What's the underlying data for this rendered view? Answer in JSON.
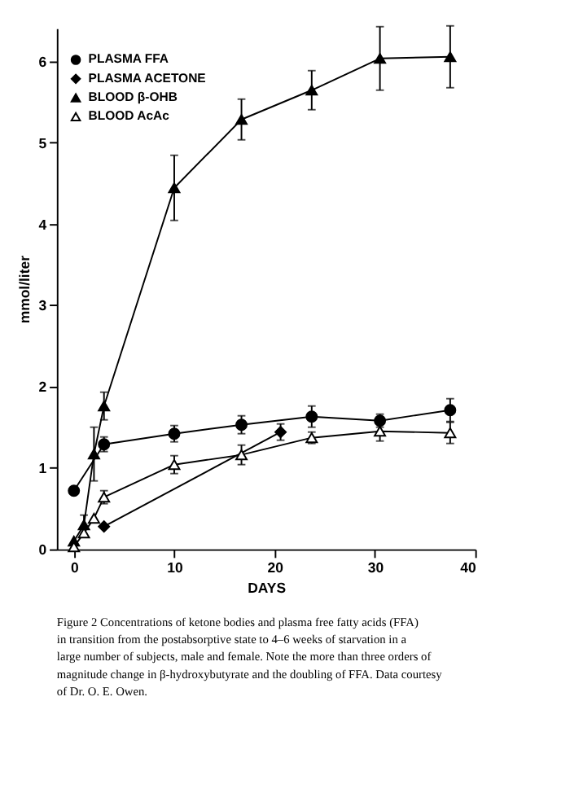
{
  "chart_data": {
    "type": "line",
    "xlabel": "DAYS",
    "ylabel": "mmol/liter",
    "xlim": [
      -1.7,
      40
    ],
    "xticks": [
      0,
      10,
      20,
      30,
      40
    ],
    "ylim": [
      0,
      6.4
    ],
    "yticks": [
      0,
      1,
      2,
      3,
      4,
      5,
      6
    ],
    "grid": false,
    "legend": "top left",
    "line_style": "solid",
    "series": [
      {
        "name": "PLASMA FFA",
        "color": "#000000",
        "marker": "circle",
        "x": [
          0,
          3,
          10,
          16.7,
          23.7,
          30.5,
          37.5
        ],
        "values": [
          0.72,
          1.29,
          1.42,
          1.53,
          1.63,
          1.58,
          1.71
        ],
        "errors": [
          null,
          0.09,
          0.1,
          0.11,
          0.13,
          0.08,
          0.14
        ]
      },
      {
        "name": "PLASMA ACETONE",
        "color": "#000000",
        "marker": "diamond",
        "x": [
          3,
          20.6
        ],
        "values": [
          0.28,
          1.44
        ],
        "errors": [
          null,
          0.1
        ]
      },
      {
        "name": "BLOOD β-OHB",
        "color": "#000000",
        "marker": "triangle",
        "x": [
          0,
          1,
          2,
          3,
          10,
          16.7,
          23.7,
          30.5,
          37.5
        ],
        "values": [
          0.1,
          0.3,
          1.17,
          1.76,
          4.44,
          5.28,
          5.64,
          6.03,
          6.05
        ],
        "errors": [
          null,
          0.12,
          0.33,
          0.17,
          0.4,
          0.25,
          0.24,
          0.39,
          0.38
        ]
      },
      {
        "name": "BLOOD AcAc",
        "color": "#ffffff",
        "marker": "triangle",
        "x": [
          0,
          1,
          2,
          3,
          10,
          16.7,
          23.7,
          30.5,
          37.5
        ],
        "values": [
          0.03,
          0.2,
          0.38,
          0.64,
          1.04,
          1.16,
          1.37,
          1.45,
          1.43
        ],
        "errors": [
          null,
          null,
          null,
          0.08,
          0.11,
          0.12,
          0.07,
          0.12,
          0.13
        ]
      }
    ],
    "annotations": [
      "Figure 2   Concentrations of ketone bodies and plasma free fatty acids (FFA) in transition from the postabsorptive state to 4–6 weeks of starvation in a large number of subjects, male and female. Note the more than three orders of magnitude change in β-hydroxybutyrate and the doubling of FFA. Data courtesy of Dr. O. E. Owen."
    ]
  }
}
